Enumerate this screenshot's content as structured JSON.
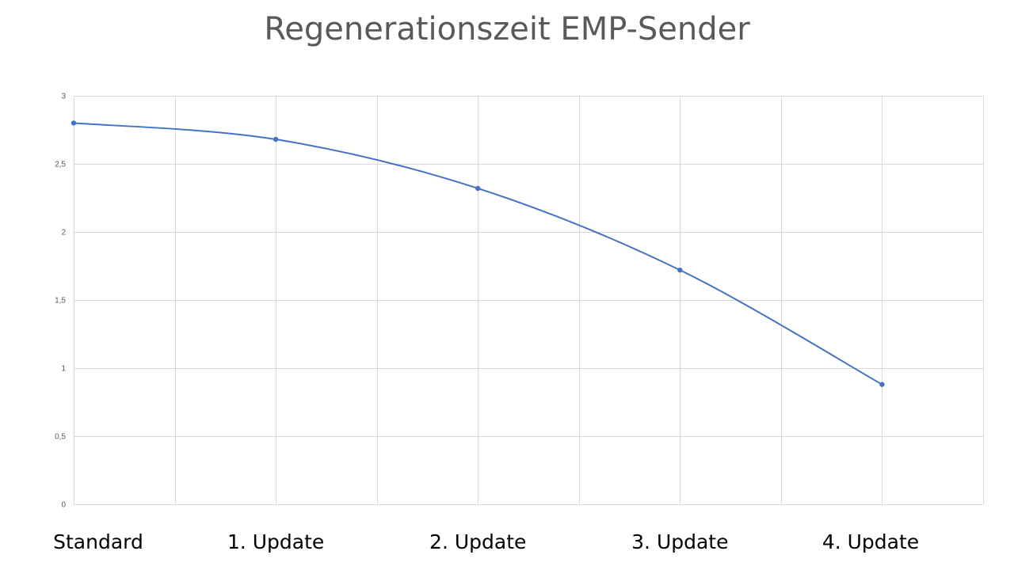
{
  "chart_data": {
    "type": "line",
    "title": "Regenerationszeit EMP-Sender",
    "xlabel": "",
    "ylabel": "",
    "ylim": [
      0,
      3
    ],
    "yticks": [
      "0",
      "0,5",
      "1",
      "1,5",
      "2",
      "2,5",
      "3"
    ],
    "ytick_values": [
      0,
      0.5,
      1,
      1.5,
      2,
      2.5,
      3
    ],
    "grid": true,
    "legend": "none",
    "smooth": true,
    "x_slots": 9,
    "categories": [
      "Standard",
      "1. Update",
      "2. Update",
      "3. Update",
      "4. Update"
    ],
    "category_slots": [
      0,
      2,
      4,
      6,
      8
    ],
    "series": [
      {
        "color": "#4472C4",
        "values": [
          2.8,
          2.68,
          2.32,
          1.72,
          0.88
        ]
      }
    ]
  }
}
